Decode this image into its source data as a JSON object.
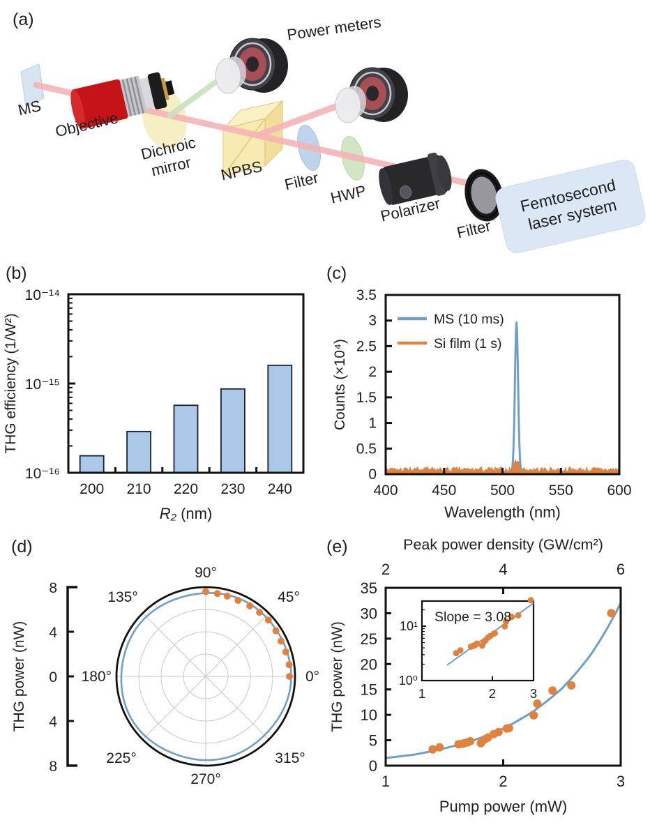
{
  "figure": {
    "panel_labels": {
      "a": "(a)",
      "b": "(b)",
      "c": "(c)",
      "d": "(d)",
      "e": "(e)"
    }
  },
  "diagram": {
    "labels": {
      "power_meters": "Power meters",
      "ms": "MS",
      "objective": "Objective",
      "dichroic_line1": "Dichroic",
      "dichroic_line2": "mirror",
      "npbs": "NPBS",
      "filter_near_npbs": "Filter",
      "hwp": "HWP",
      "polarizer": "Polarizer",
      "filter_near_laser": "Filter",
      "laser_line1": "Femtosecond",
      "laser_line2": "laser system"
    },
    "colors": {
      "beam_pink": "#f6b4b6",
      "beam_green": "#cbe3c0",
      "objective_red": "#c41418",
      "dichroic_yellow": "#f6ecba",
      "npbs_front": "#f7e7a0",
      "npbs_top": "#faf0bc",
      "npbs_side": "#f0d98a",
      "filter_blue": "#b9cfe9",
      "hwp_green": "#cfe4bd",
      "device_black": "#29292c",
      "meter_red": "#a84e55",
      "laser_box_blue": "#dbe7f4"
    }
  },
  "chart_data": [
    {
      "panel": "b",
      "type": "bar",
      "xlabel_italic": "R₂",
      "xlabel_rest": " (nm)",
      "ylabel": "THG efficiency (1/W²)",
      "categories": [
        "200",
        "210",
        "220",
        "230",
        "240"
      ],
      "values": [
        1.55e-16,
        2.9e-16,
        5.7e-16,
        8.7e-16,
        1.6e-15
      ],
      "yscale": "log",
      "ylim": [
        1e-16,
        1e-14
      ],
      "ytick_labels": [
        "10⁻¹⁶",
        "10⁻¹⁵",
        "10⁻¹⁴"
      ],
      "bar_fill": "#abc8e8",
      "bar_stroke": "#16222e"
    },
    {
      "panel": "c",
      "type": "line",
      "xlabel": "Wavelength (nm)",
      "ylabel": "Counts (×10⁴)",
      "xlim": [
        400,
        600
      ],
      "ylim": [
        0,
        3.5
      ],
      "xticks": [
        "400",
        "450",
        "500",
        "550",
        "600"
      ],
      "yticks": [
        "0",
        "0.5",
        "1",
        "1.5",
        "2",
        "2.5",
        "3",
        "3.5"
      ],
      "legend_position": "top-left",
      "series": [
        {
          "name": "MS (10 ms)",
          "color": "#6f9fc8",
          "baseline": 0.03,
          "peak_center": 512,
          "peak_height": 2.93,
          "peak_sigma": 1.9
        },
        {
          "name": "Si film (1 s)",
          "color": "#e0813c",
          "baseline": 0.09,
          "noise_amp": 0.05,
          "peak_center": 512,
          "peak_height": 0.19,
          "peak_sigma": 2.6
        }
      ],
      "noise_seed": 7
    },
    {
      "panel": "d",
      "type": "polar",
      "radial_label": "THG power (nW)",
      "radial_tick_labels": [
        "8",
        "4",
        "0",
        "4",
        "8"
      ],
      "rmax": 8,
      "grid_radii": [
        2,
        4,
        6
      ],
      "angle_labels": [
        "0°",
        "45°",
        "90°",
        "135°",
        "180°",
        "225°",
        "270°",
        "315°"
      ],
      "line_color": "#6f9fc8",
      "line_base_radius": 7.55,
      "point_color": "#e0813c",
      "points": [
        {
          "angle_deg": 0,
          "r": 7.5
        },
        {
          "angle_deg": 8,
          "r": 7.55
        },
        {
          "angle_deg": 17,
          "r": 7.5
        },
        {
          "angle_deg": 25,
          "r": 7.45
        },
        {
          "angle_deg": 33,
          "r": 7.5
        },
        {
          "angle_deg": 42,
          "r": 7.55
        },
        {
          "angle_deg": 50,
          "r": 7.5
        },
        {
          "angle_deg": 58,
          "r": 7.45
        },
        {
          "angle_deg": 67,
          "r": 7.4
        },
        {
          "angle_deg": 75,
          "r": 7.45
        },
        {
          "angle_deg": 82,
          "r": 7.5
        },
        {
          "angle_deg": 90,
          "r": 7.6
        }
      ]
    },
    {
      "panel": "e",
      "type": "scatter",
      "xlabel": "Pump power (mW)",
      "ylabel": "THG power (nW)",
      "top_axis_label": "Peak power density (GW/cm²)",
      "xlim": [
        1,
        3
      ],
      "ylim": [
        0,
        35
      ],
      "top_xlim": [
        2,
        6
      ],
      "xticks": [
        "1",
        "2",
        "3"
      ],
      "yticks": [
        "0",
        "5",
        "10",
        "15",
        "20",
        "25",
        "30",
        "35"
      ],
      "top_xticks": [
        "2",
        "4",
        "6"
      ],
      "point_color": "#e0813c",
      "curve_color": "#6f9fc8",
      "points": [
        [
          1.4,
          3.2
        ],
        [
          1.46,
          3.6
        ],
        [
          1.62,
          4.2
        ],
        [
          1.65,
          4.3
        ],
        [
          1.67,
          4.4
        ],
        [
          1.7,
          4.6
        ],
        [
          1.72,
          4.8
        ],
        [
          1.81,
          4.4
        ],
        [
          1.84,
          5.1
        ],
        [
          1.87,
          5.5
        ],
        [
          1.92,
          6.2
        ],
        [
          1.96,
          6.6
        ],
        [
          2.03,
          7.3
        ],
        [
          2.05,
          7.4
        ],
        [
          2.26,
          9.9
        ],
        [
          2.29,
          12.2
        ],
        [
          2.42,
          14.8
        ],
        [
          2.58,
          15.8
        ],
        [
          2.92,
          30.0
        ]
      ],
      "curve_points": [
        [
          1,
          1.5
        ],
        [
          1.25,
          2.2
        ],
        [
          1.5,
          3.4
        ],
        [
          1.75,
          5.0
        ],
        [
          2,
          7.3
        ],
        [
          2.25,
          10.6
        ],
        [
          2.5,
          15.2
        ],
        [
          2.75,
          22.0
        ],
        [
          3,
          32.0
        ]
      ],
      "inset": {
        "annotation": "Slope = 3.08",
        "xlim": [
          1,
          3
        ],
        "ylim": [
          1,
          29
        ],
        "xtick_labels": [
          "1",
          "2",
          "3"
        ],
        "ytick_labels": [
          "10⁰",
          "10¹"
        ],
        "fit_a": 0.9,
        "fit_n": 3.08,
        "fit_xrange": [
          1.28,
          3.0
        ]
      }
    }
  ]
}
